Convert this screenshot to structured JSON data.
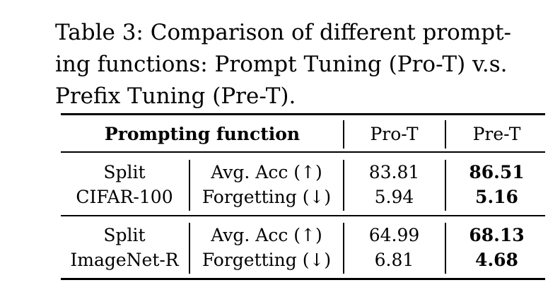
{
  "caption": {
    "line1": "Table 3: Comparison of different prompt-",
    "line2": "ing functions: Prompt Tuning (Pro-T) v.s.",
    "line3": "Prefix Tuning (Pre-T)."
  },
  "table": {
    "header": {
      "prompting_function": "Prompting function",
      "pro_t": "Pro-T",
      "pre_t": "Pre-T"
    },
    "groups": [
      {
        "dataset_line1": "Split",
        "dataset_line2": "CIFAR-100",
        "rows": [
          {
            "metric": "Avg. Acc (↑)",
            "pro_t": "83.81",
            "pre_t": "86.51"
          },
          {
            "metric": "Forgetting (↓)",
            "pro_t": "5.94",
            "pre_t": "5.16"
          }
        ]
      },
      {
        "dataset_line1": "Split",
        "dataset_line2": "ImageNet-R",
        "rows": [
          {
            "metric": "Avg. Acc (↑)",
            "pro_t": "64.99",
            "pre_t": "68.13"
          },
          {
            "metric": "Forgetting (↓)",
            "pro_t": "6.81",
            "pre_t": "4.68"
          }
        ]
      }
    ]
  }
}
